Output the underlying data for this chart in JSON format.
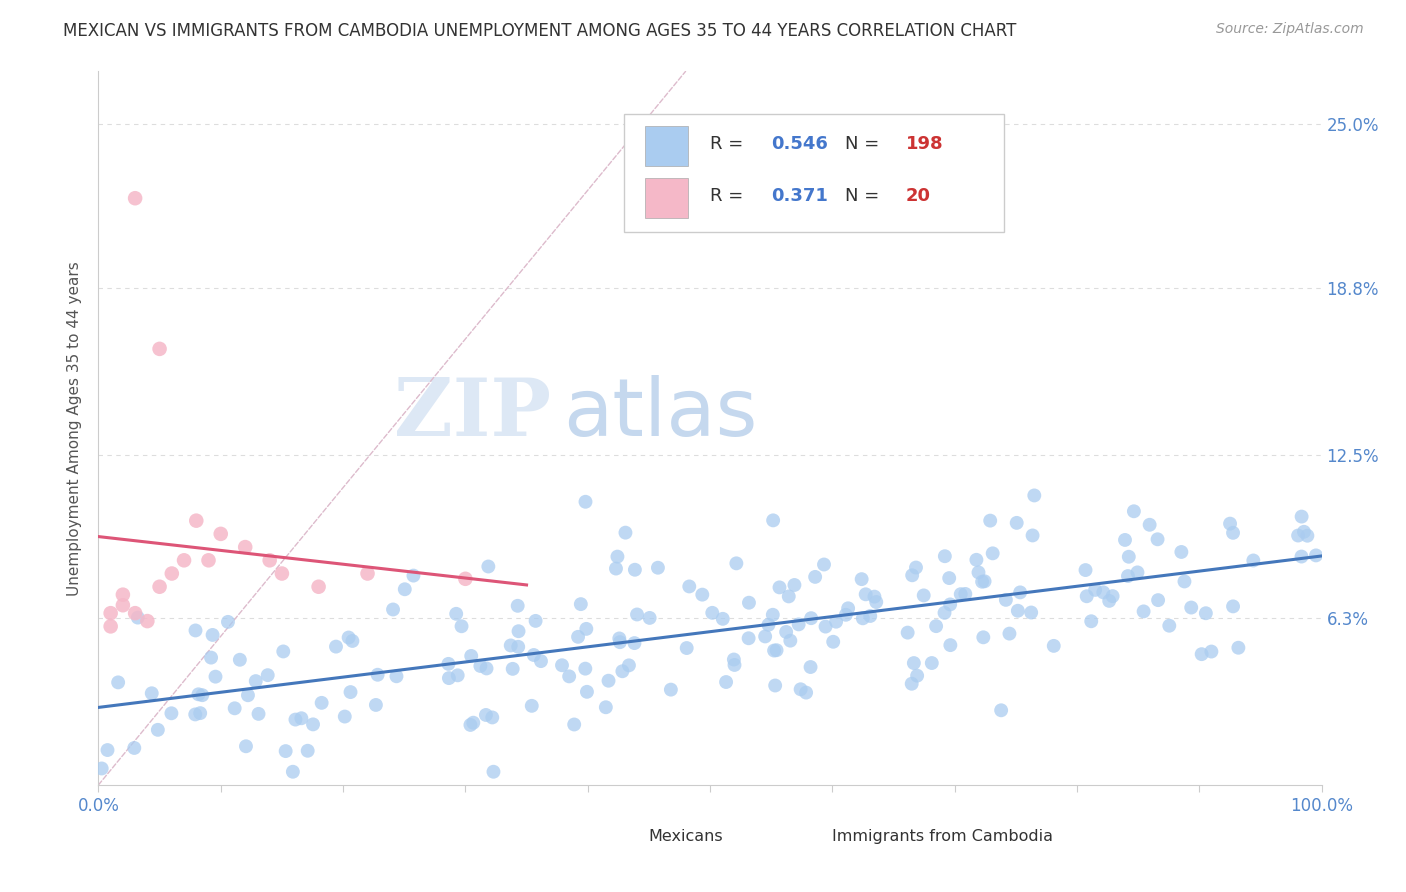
{
  "title": "MEXICAN VS IMMIGRANTS FROM CAMBODIA UNEMPLOYMENT AMONG AGES 35 TO 44 YEARS CORRELATION CHART",
  "source": "Source: ZipAtlas.com",
  "ylabel": "Unemployment Among Ages 35 to 44 years",
  "ytick_labels": [
    "6.3%",
    "12.5%",
    "18.8%",
    "25.0%"
  ],
  "ytick_values": [
    0.063,
    0.125,
    0.188,
    0.25
  ],
  "xlim": [
    0.0,
    1.0
  ],
  "ylim": [
    0.0,
    0.27
  ],
  "r_mexican": 0.546,
  "n_mexican": 198,
  "r_cambodia": 0.371,
  "n_cambodia": 20,
  "color_mexican": "#aaccf0",
  "color_cambodia": "#f5b8c8",
  "trendline_mexican": "#4477bb",
  "trendline_cambodia": "#dd5577",
  "watermark_zip": "ZIP",
  "watermark_atlas": "atlas",
  "background_color": "#ffffff",
  "grid_color": "#dddddd",
  "legend_R_color": "#4477cc",
  "legend_N_color": "#cc3333"
}
